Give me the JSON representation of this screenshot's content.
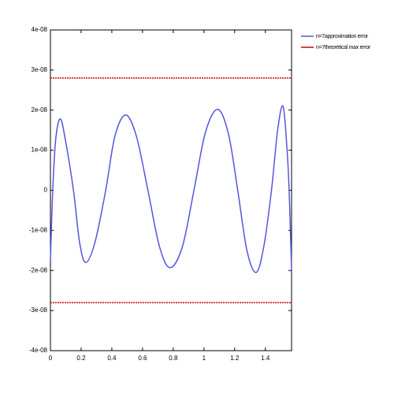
{
  "chart_data": {
    "type": "line",
    "xlim": [
      0,
      1.5708
    ],
    "xticks": [
      0,
      {
        "value": 0.2,
        "label": "0.2"
      },
      {
        "value": 0.4,
        "label": "0.4"
      },
      {
        "value": 0.6,
        "label": "0.6"
      },
      {
        "value": 0.8,
        "label": "0.8"
      },
      1,
      {
        "value": 1.2,
        "label": "1.2"
      },
      {
        "value": 1.4,
        "label": "1.4"
      }
    ],
    "ylim": [
      -4e-08,
      4e-08
    ],
    "yticks": [
      {
        "value": -4e-08,
        "label": "-4e-08"
      },
      {
        "value": -3e-08,
        "label": "-3e-08"
      },
      {
        "value": -2e-08,
        "label": "-2e-08"
      },
      {
        "value": -1e-08,
        "label": "-1e-08"
      },
      0,
      {
        "value": 1e-08,
        "label": "1e-08"
      },
      {
        "value": 2e-08,
        "label": "2e-08"
      },
      {
        "value": 3e-08,
        "label": "3e-08"
      },
      {
        "value": 4e-08,
        "label": "4e-08"
      }
    ],
    "grid": false,
    "legend": "upper right outside",
    "series": [
      {
        "name": "n=7approximation error",
        "color": "#5555dd",
        "x": [
          0,
          0.015,
          0.035,
          0.065,
          0.1,
          0.15,
          0.19,
          0.23,
          0.29,
          0.36,
          0.42,
          0.49,
          0.56,
          0.635,
          0.71,
          0.78,
          0.86,
          0.935,
          1.01,
          1.09,
          1.16,
          1.22,
          1.28,
          1.34,
          1.39,
          1.44,
          1.48,
          1.515,
          1.54,
          1.555,
          1.5708
        ],
        "values": [
          -1.75e-08,
          0,
          1.3e-08,
          1.78e-08,
          1.2e-08,
          0,
          -1.3e-08,
          -1.8e-08,
          -1.3e-08,
          0,
          1.35e-08,
          1.88e-08,
          1.35e-08,
          0,
          -1.4e-08,
          -1.93e-08,
          -1.4e-08,
          0,
          1.45e-08,
          2.02e-08,
          1.4e-08,
          0,
          -1.5e-08,
          -2.05e-08,
          -1.4e-08,
          0,
          1.5e-08,
          2.1e-08,
          1.1e-08,
          0,
          -2e-08
        ]
      },
      {
        "name": "n=7theoretical max error",
        "color": "#cc0000",
        "x": [
          0,
          1.5708,
          1.5708,
          0,
          1.5708
        ],
        "values": [
          2.8e-08,
          2.8e-08,
          null,
          -2.8e-08,
          -2.8e-08
        ]
      }
    ]
  }
}
